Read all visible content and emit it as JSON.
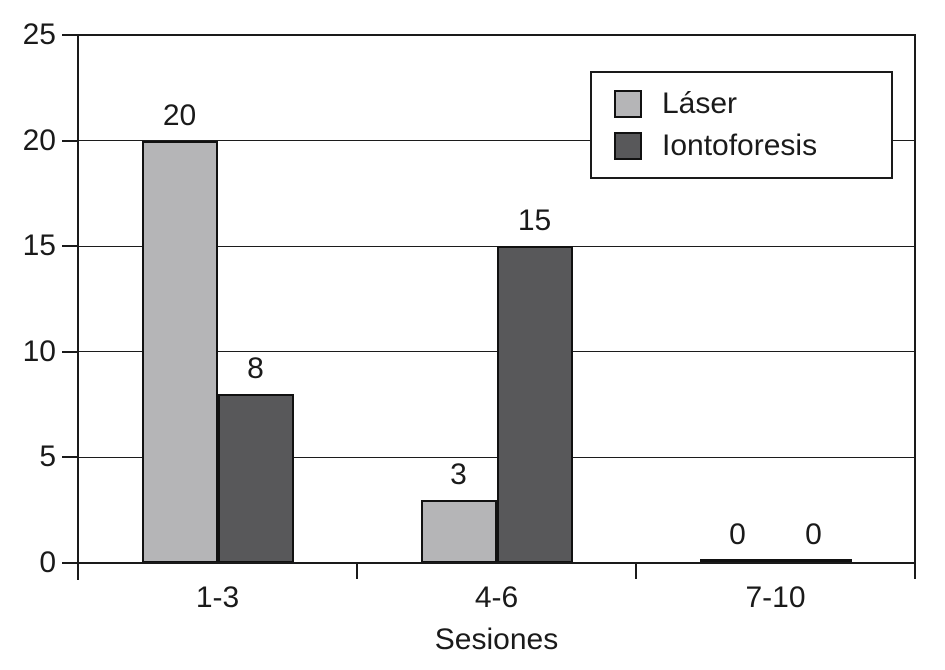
{
  "chart_data": {
    "type": "bar",
    "categories": [
      "1-3",
      "4-6",
      "7-10"
    ],
    "series": [
      {
        "name": "Láser",
        "color": "#b5b5b7",
        "values": [
          20,
          3,
          0
        ]
      },
      {
        "name": "Iontoforesis",
        "color": "#58585a",
        "values": [
          8,
          15,
          0
        ]
      }
    ],
    "title": "",
    "xlabel": "Sesiones",
    "ylabel": "",
    "ylim": [
      0,
      25
    ],
    "yticks": [
      0,
      5,
      10,
      15,
      20,
      25
    ],
    "grid": true,
    "grid_color": "#1c1c1c",
    "bar_labels": true,
    "legend_position": "top-right"
  }
}
